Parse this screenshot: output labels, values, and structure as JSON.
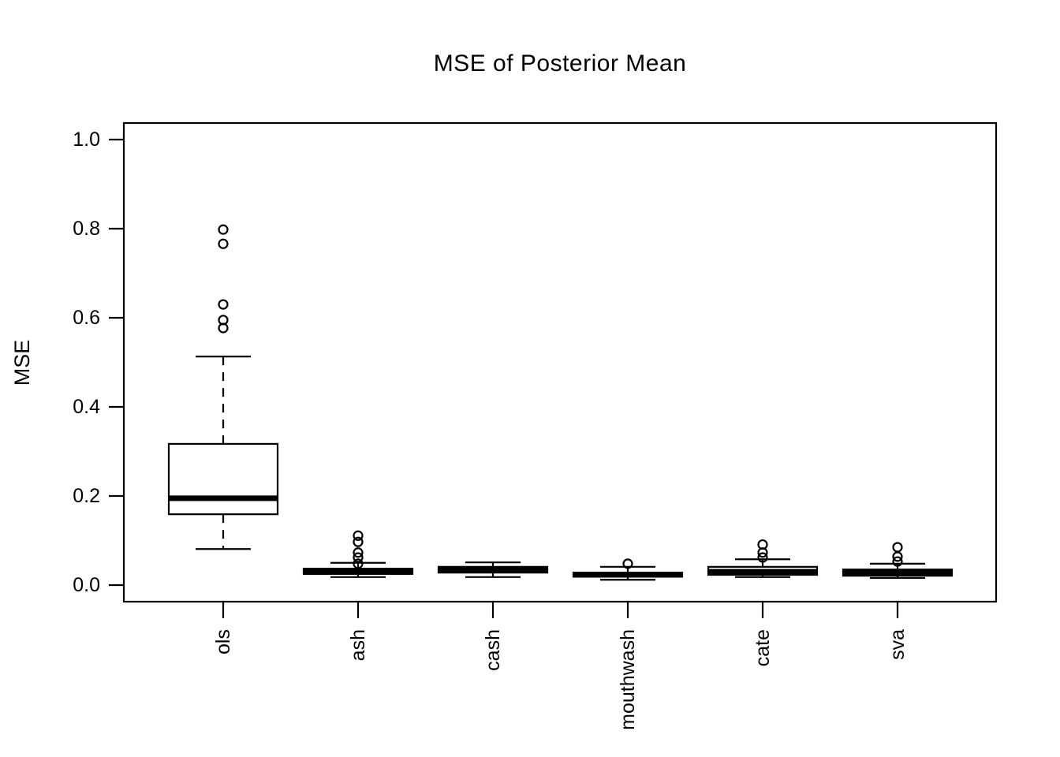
{
  "chart_data": {
    "type": "boxplot",
    "title": "MSE of Posterior Mean",
    "xlabel": "",
    "ylabel": "MSE",
    "ylim": [
      0.0,
      1.0
    ],
    "y_ticks": [
      0.0,
      0.2,
      0.4,
      0.6,
      0.8,
      1.0
    ],
    "y_tick_labels": [
      "0.0",
      "0.2",
      "0.4",
      "0.6",
      "0.8",
      "1.0"
    ],
    "grid": false,
    "legend": "none",
    "categories": [
      "ols",
      "ash",
      "cash",
      "mouthwash",
      "cate",
      "sva"
    ],
    "series": [
      {
        "name": "ols",
        "q1": 0.159,
        "median": 0.195,
        "q3": 0.317,
        "whisker_low": 0.081,
        "whisker_high": 0.513,
        "outliers": [
          0.798,
          0.766,
          0.63,
          0.595,
          0.577
        ]
      },
      {
        "name": "ash",
        "q1": 0.025,
        "median": 0.032,
        "q3": 0.037,
        "whisker_low": 0.018,
        "whisker_high": 0.05,
        "outliers": [
          0.111,
          0.097,
          0.073,
          0.062,
          0.048
        ]
      },
      {
        "name": "cash",
        "q1": 0.028,
        "median": 0.034,
        "q3": 0.041,
        "whisker_low": 0.018,
        "whisker_high": 0.051,
        "outliers": []
      },
      {
        "name": "mouthwash",
        "q1": 0.019,
        "median": 0.023,
        "q3": 0.028,
        "whisker_low": 0.012,
        "whisker_high": 0.041,
        "outliers": [
          0.048
        ]
      },
      {
        "name": "cate",
        "q1": 0.023,
        "median": 0.03,
        "q3": 0.041,
        "whisker_low": 0.018,
        "whisker_high": 0.058,
        "outliers": [
          0.091,
          0.073,
          0.062
        ]
      },
      {
        "name": "sva",
        "q1": 0.021,
        "median": 0.028,
        "q3": 0.035,
        "whisker_low": 0.016,
        "whisker_high": 0.048,
        "outliers": [
          0.085,
          0.064,
          0.053
        ]
      }
    ],
    "colors": {
      "stroke": "#000000",
      "box_fill": "#ffffff",
      "background": "#ffffff"
    }
  }
}
